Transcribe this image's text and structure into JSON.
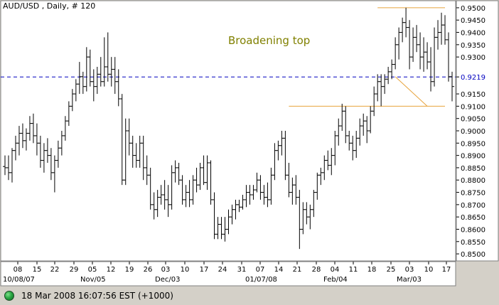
{
  "header": {
    "title": "AUD/USD , Daily, # 120"
  },
  "status": {
    "timestamp": "18 Mar 2008 16:07:56 EST (+1000)",
    "icon": "green-status-light-icon"
  },
  "colors": {
    "background": "#ffffff",
    "panel": "#d4d0c8",
    "bars": "#000000",
    "annotation": "#808000",
    "trendline": "#e8a33c",
    "current_price_line": "#0000c0"
  },
  "chart_data": {
    "type": "ohlc",
    "title": "AUD/USD , Daily, # 120",
    "annotation": "Broadening top",
    "ylim": [
      0.848,
      0.952
    ],
    "yticks": [
      0.85,
      0.855,
      0.86,
      0.865,
      0.87,
      0.875,
      0.88,
      0.885,
      0.89,
      0.895,
      0.9,
      0.905,
      0.91,
      0.915,
      0.9219,
      0.93,
      0.935,
      0.94,
      0.945,
      0.95
    ],
    "ytick_labels": [
      "0.8500",
      "0.8550",
      "0.8600",
      "0.8650",
      "0.8700",
      "0.8750",
      "0.8800",
      "0.8850",
      "0.8900",
      "0.8950",
      "0.9000",
      "0.9050",
      "0.9100",
      "0.9150",
      "0.9219",
      "0.9300",
      "0.9350",
      "0.9400",
      "0.9450",
      "0.9500"
    ],
    "current_price": 0.9219,
    "x_day_labels": [
      "08",
      "15",
      "22",
      "29",
      "05",
      "12",
      "19",
      "26",
      "03",
      "10",
      "17",
      "24",
      "31",
      "07",
      "14",
      "21",
      "28",
      "04",
      "11",
      "18",
      "25",
      "03",
      "10",
      "17"
    ],
    "x_month_labels": [
      "10/08/07",
      "Nov/05",
      "Dec/03",
      "01/07/08",
      "Feb/04",
      "Mar/03"
    ],
    "grid": false,
    "lines": [
      {
        "name": "resistance",
        "from": [
          105,
          0.95
        ],
        "to": [
          124,
          0.95
        ]
      },
      {
        "name": "support",
        "from": [
          80,
          0.91
        ],
        "to": [
          124,
          0.91
        ]
      },
      {
        "name": "lower-trend",
        "from": [
          110,
          0.922
        ],
        "to": [
          119,
          0.91
        ]
      }
    ],
    "ohlc": [
      [
        0.8855,
        0.89,
        0.882,
        0.885
      ],
      [
        0.885,
        0.89,
        0.88,
        0.883
      ],
      [
        0.883,
        0.893,
        0.879,
        0.892
      ],
      [
        0.892,
        0.898,
        0.888,
        0.895
      ],
      [
        0.895,
        0.902,
        0.89,
        0.899
      ],
      [
        0.899,
        0.903,
        0.893,
        0.896
      ],
      [
        0.896,
        0.901,
        0.892,
        0.899
      ],
      [
        0.899,
        0.906,
        0.896,
        0.903
      ],
      [
        0.903,
        0.907,
        0.895,
        0.898
      ],
      [
        0.898,
        0.903,
        0.89,
        0.895
      ],
      [
        0.895,
        0.898,
        0.885,
        0.888
      ],
      [
        0.888,
        0.895,
        0.883,
        0.892
      ],
      [
        0.892,
        0.897,
        0.887,
        0.89
      ],
      [
        0.89,
        0.893,
        0.88,
        0.883
      ],
      [
        0.883,
        0.89,
        0.875,
        0.888
      ],
      [
        0.888,
        0.896,
        0.885,
        0.893
      ],
      [
        0.893,
        0.9,
        0.89,
        0.898
      ],
      [
        0.898,
        0.906,
        0.896,
        0.904
      ],
      [
        0.904,
        0.912,
        0.902,
        0.91
      ],
      [
        0.91,
        0.917,
        0.908,
        0.915
      ],
      [
        0.915,
        0.921,
        0.912,
        0.919
      ],
      [
        0.919,
        0.928,
        0.915,
        0.922
      ],
      [
        0.922,
        0.924,
        0.915,
        0.918
      ],
      [
        0.918,
        0.934,
        0.916,
        0.93
      ],
      [
        0.93,
        0.933,
        0.918,
        0.92
      ],
      [
        0.92,
        0.925,
        0.912,
        0.918
      ],
      [
        0.918,
        0.926,
        0.915,
        0.923
      ],
      [
        0.923,
        0.93,
        0.918,
        0.92
      ],
      [
        0.92,
        0.938,
        0.918,
        0.926
      ],
      [
        0.926,
        0.94,
        0.92,
        0.923
      ],
      [
        0.923,
        0.93,
        0.918,
        0.925
      ],
      [
        0.925,
        0.93,
        0.915,
        0.92
      ],
      [
        0.92,
        0.925,
        0.91,
        0.913
      ],
      [
        0.913,
        0.915,
        0.878,
        0.88
      ],
      [
        0.88,
        0.905,
        0.878,
        0.9
      ],
      [
        0.9,
        0.905,
        0.89,
        0.895
      ],
      [
        0.895,
        0.898,
        0.885,
        0.89
      ],
      [
        0.89,
        0.895,
        0.885,
        0.888
      ],
      [
        0.888,
        0.898,
        0.885,
        0.895
      ],
      [
        0.895,
        0.898,
        0.88,
        0.885
      ],
      [
        0.885,
        0.89,
        0.878,
        0.882
      ],
      [
        0.882,
        0.885,
        0.868,
        0.87
      ],
      [
        0.87,
        0.875,
        0.864,
        0.868
      ],
      [
        0.868,
        0.876,
        0.865,
        0.873
      ],
      [
        0.873,
        0.878,
        0.87,
        0.874
      ],
      [
        0.874,
        0.88,
        0.868,
        0.872
      ],
      [
        0.872,
        0.878,
        0.865,
        0.87
      ],
      [
        0.87,
        0.886,
        0.868,
        0.883
      ],
      [
        0.883,
        0.888,
        0.879,
        0.885
      ],
      [
        0.885,
        0.887,
        0.878,
        0.88
      ],
      [
        0.88,
        0.882,
        0.87,
        0.872
      ],
      [
        0.872,
        0.878,
        0.869,
        0.875
      ],
      [
        0.875,
        0.88,
        0.869,
        0.872
      ],
      [
        0.872,
        0.882,
        0.87,
        0.88
      ],
      [
        0.88,
        0.885,
        0.875,
        0.878
      ],
      [
        0.878,
        0.887,
        0.876,
        0.885
      ],
      [
        0.885,
        0.89,
        0.878,
        0.879
      ],
      [
        0.879,
        0.89,
        0.876,
        0.887
      ],
      [
        0.887,
        0.888,
        0.87,
        0.872
      ],
      [
        0.872,
        0.875,
        0.856,
        0.858
      ],
      [
        0.858,
        0.865,
        0.856,
        0.862
      ],
      [
        0.862,
        0.865,
        0.856,
        0.858
      ],
      [
        0.858,
        0.865,
        0.855,
        0.86
      ],
      [
        0.86,
        0.868,
        0.858,
        0.865
      ],
      [
        0.865,
        0.87,
        0.862,
        0.868
      ],
      [
        0.868,
        0.872,
        0.864,
        0.87
      ],
      [
        0.87,
        0.872,
        0.867,
        0.869
      ],
      [
        0.869,
        0.874,
        0.868,
        0.872
      ],
      [
        0.872,
        0.878,
        0.869,
        0.875
      ],
      [
        0.875,
        0.878,
        0.87,
        0.874
      ],
      [
        0.874,
        0.878,
        0.872,
        0.876
      ],
      [
        0.876,
        0.883,
        0.875,
        0.88
      ],
      [
        0.88,
        0.882,
        0.872,
        0.875
      ],
      [
        0.875,
        0.878,
        0.87,
        0.873
      ],
      [
        0.873,
        0.879,
        0.869,
        0.872
      ],
      [
        0.872,
        0.885,
        0.87,
        0.882
      ],
      [
        0.882,
        0.895,
        0.88,
        0.892
      ],
      [
        0.892,
        0.896,
        0.888,
        0.894
      ],
      [
        0.894,
        0.9,
        0.89,
        0.897
      ],
      [
        0.897,
        0.9,
        0.88,
        0.882
      ],
      [
        0.882,
        0.887,
        0.873,
        0.875
      ],
      [
        0.875,
        0.881,
        0.87,
        0.878
      ],
      [
        0.878,
        0.882,
        0.87,
        0.873
      ],
      [
        0.873,
        0.876,
        0.852,
        0.86
      ],
      [
        0.86,
        0.871,
        0.858,
        0.868
      ],
      [
        0.868,
        0.871,
        0.862,
        0.865
      ],
      [
        0.865,
        0.87,
        0.86,
        0.868
      ],
      [
        0.868,
        0.876,
        0.865,
        0.875
      ],
      [
        0.875,
        0.883,
        0.872,
        0.882
      ],
      [
        0.882,
        0.885,
        0.878,
        0.883
      ],
      [
        0.883,
        0.89,
        0.88,
        0.888
      ],
      [
        0.888,
        0.892,
        0.884,
        0.886
      ],
      [
        0.886,
        0.893,
        0.882,
        0.89
      ],
      [
        0.89,
        0.9,
        0.886,
        0.898
      ],
      [
        0.898,
        0.905,
        0.894,
        0.902
      ],
      [
        0.902,
        0.911,
        0.9,
        0.908
      ],
      [
        0.908,
        0.91,
        0.895,
        0.898
      ],
      [
        0.898,
        0.9,
        0.892,
        0.895
      ],
      [
        0.895,
        0.898,
        0.888,
        0.892
      ],
      [
        0.892,
        0.9,
        0.889,
        0.897
      ],
      [
        0.897,
        0.905,
        0.894,
        0.902
      ],
      [
        0.902,
        0.907,
        0.898,
        0.904
      ],
      [
        0.904,
        0.906,
        0.895,
        0.9
      ],
      [
        0.9,
        0.91,
        0.899,
        0.908
      ],
      [
        0.908,
        0.918,
        0.906,
        0.915
      ],
      [
        0.915,
        0.923,
        0.912,
        0.92
      ],
      [
        0.92,
        0.923,
        0.91,
        0.918
      ],
      [
        0.918,
        0.923,
        0.915,
        0.921
      ],
      [
        0.921,
        0.926,
        0.919,
        0.924
      ],
      [
        0.924,
        0.929,
        0.921,
        0.927
      ],
      [
        0.927,
        0.938,
        0.925,
        0.935
      ],
      [
        0.935,
        0.942,
        0.929,
        0.94
      ],
      [
        0.94,
        0.946,
        0.936,
        0.944
      ],
      [
        0.944,
        0.95,
        0.938,
        0.942
      ],
      [
        0.942,
        0.945,
        0.925,
        0.93
      ],
      [
        0.93,
        0.942,
        0.928,
        0.938
      ],
      [
        0.938,
        0.943,
        0.932,
        0.935
      ],
      [
        0.935,
        0.94,
        0.925,
        0.93
      ],
      [
        0.93,
        0.938,
        0.924,
        0.932
      ],
      [
        0.932,
        0.936,
        0.925,
        0.928
      ],
      [
        0.928,
        0.934,
        0.916,
        0.92
      ],
      [
        0.92,
        0.942,
        0.918,
        0.938
      ],
      [
        0.938,
        0.945,
        0.933,
        0.94
      ],
      [
        0.94,
        0.948,
        0.935,
        0.943
      ],
      [
        0.943,
        0.947,
        0.935,
        0.937
      ],
      [
        0.937,
        0.94,
        0.92,
        0.922
      ],
      [
        0.922,
        0.924,
        0.912,
        0.918
      ]
    ]
  }
}
